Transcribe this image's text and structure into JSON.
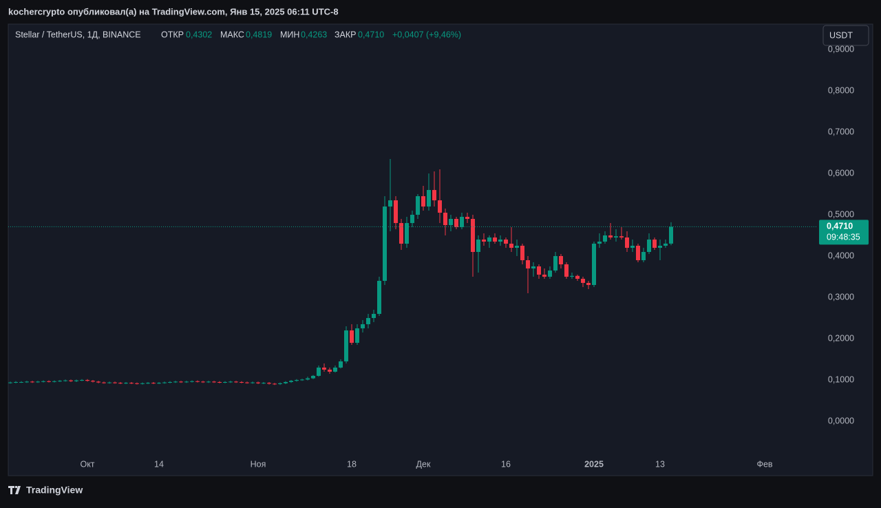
{
  "header": {
    "title": "kochercrypto опубликовал(а) на TradingView.com, Янв 15, 2025 06:11 UTC-8"
  },
  "legend": {
    "symbol": "Stellar / TetherUS, 1Д, BINANCE",
    "open_label": "ОТКР",
    "open": "0,4302",
    "high_label": "МАКС",
    "high": "0,4819",
    "low_label": "МИН",
    "low": "0,4263",
    "close_label": "ЗАКР",
    "close": "0,4710",
    "change": "+0,0407 (+9,46%)"
  },
  "currency_button": "USDT",
  "last_price": {
    "label": "0,4710",
    "countdown": "09:48:35"
  },
  "footer": {
    "logo": "TradingView"
  },
  "chart_data": {
    "type": "candlestick",
    "categories": [
      null,
      null,
      null,
      null,
      null,
      null,
      null,
      null,
      null,
      null,
      null,
      null,
      null,
      null,
      "Окт",
      null,
      null,
      null,
      null,
      null,
      null,
      null,
      null,
      null,
      null,
      null,
      null,
      "14",
      null,
      null,
      null,
      null,
      null,
      null,
      null,
      null,
      null,
      null,
      null,
      null,
      null,
      null,
      null,
      null,
      null,
      "Ноя",
      null,
      null,
      null,
      null,
      null,
      null,
      null,
      null,
      null,
      null,
      null,
      null,
      null,
      null,
      null,
      null,
      "18",
      null,
      null,
      null,
      null,
      null,
      null,
      null,
      null,
      null,
      null,
      null,
      null,
      "Дек",
      null,
      null,
      null,
      null,
      null,
      null,
      null,
      null,
      null,
      null,
      null,
      null,
      null,
      null,
      "16",
      null,
      null,
      null,
      null,
      null,
      null,
      null,
      null,
      null,
      null,
      null,
      null,
      null,
      null,
      null,
      "2025",
      null,
      null,
      null,
      null,
      null,
      null,
      null,
      null,
      null,
      null,
      null,
      "13",
      null,
      null,
      null,
      null,
      null,
      null,
      null,
      null,
      null,
      null,
      null,
      null,
      null,
      null,
      null,
      null,
      null,
      null,
      "Фев"
    ],
    "open": [
      0.093,
      0.094,
      0.095,
      0.095,
      0.096,
      0.095,
      0.096,
      0.097,
      0.096,
      0.097,
      0.098,
      0.099,
      0.097,
      0.099,
      0.1,
      0.098,
      0.096,
      0.094,
      0.093,
      0.094,
      0.093,
      0.092,
      0.093,
      0.092,
      0.091,
      0.092,
      0.093,
      0.092,
      0.093,
      0.094,
      0.095,
      0.096,
      0.095,
      0.096,
      0.097,
      0.096,
      0.095,
      0.096,
      0.095,
      0.094,
      0.095,
      0.096,
      0.095,
      0.094,
      0.093,
      0.094,
      0.092,
      0.093,
      0.091,
      0.09,
      0.092,
      0.095,
      0.098,
      0.1,
      0.101,
      0.104,
      0.11,
      0.13,
      0.125,
      0.12,
      0.13,
      0.145,
      0.22,
      0.19,
      0.225,
      0.235,
      0.25,
      0.26,
      0.34,
      0.52,
      0.535,
      0.48,
      0.43,
      0.48,
      0.5,
      0.545,
      0.52,
      0.56,
      0.535,
      0.505,
      0.475,
      0.49,
      0.47,
      0.495,
      0.49,
      0.41,
      0.44,
      0.435,
      0.445,
      0.435,
      0.44,
      0.43,
      0.42,
      0.425,
      0.39,
      0.37,
      0.375,
      0.355,
      0.35,
      0.365,
      0.4,
      0.38,
      0.35,
      0.352,
      0.345,
      0.335,
      0.33,
      0.43,
      0.435,
      0.45,
      0.445,
      0.448,
      0.445,
      0.42,
      0.425,
      0.39,
      0.41,
      0.44,
      0.42,
      0.425,
      0.4302,
      null,
      null,
      null,
      null,
      null,
      null,
      null,
      null,
      null,
      null,
      null,
      null,
      null,
      null,
      null,
      null,
      null
    ],
    "high": [
      0.096,
      0.097,
      0.097,
      0.098,
      0.098,
      0.098,
      0.099,
      0.099,
      0.099,
      0.1,
      0.101,
      0.101,
      0.101,
      0.102,
      0.102,
      0.1,
      0.098,
      0.096,
      0.096,
      0.096,
      0.095,
      0.095,
      0.095,
      0.094,
      0.094,
      0.095,
      0.095,
      0.095,
      0.096,
      0.097,
      0.098,
      0.098,
      0.098,
      0.099,
      0.099,
      0.098,
      0.098,
      0.098,
      0.097,
      0.097,
      0.098,
      0.098,
      0.097,
      0.096,
      0.096,
      0.096,
      0.095,
      0.095,
      0.093,
      0.094,
      0.097,
      0.1,
      0.102,
      0.103,
      0.108,
      0.112,
      0.135,
      0.14,
      0.13,
      0.135,
      0.15,
      0.23,
      0.235,
      0.235,
      0.245,
      0.26,
      0.27,
      0.35,
      0.545,
      0.635,
      0.545,
      0.49,
      0.495,
      0.51,
      0.55,
      0.57,
      0.6,
      0.605,
      0.61,
      0.515,
      0.5,
      0.495,
      0.505,
      0.505,
      0.5,
      0.45,
      0.455,
      0.45,
      0.455,
      0.45,
      0.445,
      0.47,
      0.44,
      0.43,
      0.4,
      0.385,
      0.38,
      0.37,
      0.375,
      0.41,
      0.405,
      0.385,
      0.36,
      0.355,
      0.35,
      0.34,
      0.435,
      0.455,
      0.46,
      0.48,
      0.465,
      0.47,
      0.46,
      0.44,
      0.43,
      0.42,
      0.455,
      0.445,
      0.44,
      0.44,
      0.4819,
      null,
      null,
      null,
      null,
      null,
      null,
      null,
      null,
      null,
      null,
      null,
      null,
      null,
      null,
      null,
      null,
      null
    ],
    "low": [
      0.091,
      0.092,
      0.093,
      0.093,
      0.093,
      0.093,
      0.094,
      0.094,
      0.094,
      0.095,
      0.096,
      0.095,
      0.095,
      0.097,
      0.096,
      0.094,
      0.092,
      0.091,
      0.091,
      0.091,
      0.09,
      0.09,
      0.09,
      0.089,
      0.089,
      0.09,
      0.09,
      0.09,
      0.091,
      0.092,
      0.093,
      0.093,
      0.093,
      0.094,
      0.094,
      0.093,
      0.093,
      0.093,
      0.092,
      0.092,
      0.093,
      0.093,
      0.092,
      0.091,
      0.091,
      0.09,
      0.09,
      0.089,
      0.088,
      0.088,
      0.09,
      0.093,
      0.096,
      0.098,
      0.099,
      0.102,
      0.108,
      0.12,
      0.115,
      0.118,
      0.128,
      0.14,
      0.185,
      0.185,
      0.215,
      0.225,
      0.24,
      0.255,
      0.33,
      0.46,
      0.465,
      0.415,
      0.42,
      0.47,
      0.49,
      0.51,
      0.51,
      0.52,
      0.48,
      0.45,
      0.46,
      0.465,
      0.465,
      0.48,
      0.35,
      0.36,
      0.425,
      0.42,
      0.43,
      0.425,
      0.42,
      0.41,
      0.4,
      0.38,
      0.31,
      0.35,
      0.345,
      0.345,
      0.345,
      0.36,
      0.37,
      0.345,
      0.345,
      0.34,
      0.325,
      0.32,
      0.325,
      0.42,
      0.43,
      0.44,
      0.435,
      0.44,
      0.41,
      0.41,
      0.385,
      0.385,
      0.405,
      0.415,
      0.39,
      0.42,
      0.4263,
      null,
      null,
      null,
      null,
      null,
      null,
      null,
      null,
      null,
      null,
      null,
      null,
      null,
      null,
      null,
      null,
      null
    ],
    "close": [
      0.094,
      0.095,
      0.095,
      0.096,
      0.095,
      0.096,
      0.097,
      0.096,
      0.097,
      0.098,
      0.099,
      0.097,
      0.099,
      0.1,
      0.098,
      0.096,
      0.094,
      0.093,
      0.094,
      0.093,
      0.092,
      0.093,
      0.092,
      0.091,
      0.092,
      0.093,
      0.092,
      0.093,
      0.094,
      0.095,
      0.096,
      0.095,
      0.096,
      0.097,
      0.096,
      0.095,
      0.096,
      0.095,
      0.094,
      0.095,
      0.096,
      0.095,
      0.094,
      0.093,
      0.094,
      0.092,
      0.093,
      0.091,
      0.09,
      0.092,
      0.095,
      0.098,
      0.1,
      0.101,
      0.104,
      0.11,
      0.13,
      0.125,
      0.12,
      0.13,
      0.145,
      0.22,
      0.19,
      0.225,
      0.235,
      0.25,
      0.26,
      0.34,
      0.52,
      0.535,
      0.48,
      0.43,
      0.48,
      0.5,
      0.545,
      0.52,
      0.56,
      0.535,
      0.505,
      0.475,
      0.49,
      0.47,
      0.495,
      0.49,
      0.41,
      0.44,
      0.435,
      0.445,
      0.435,
      0.44,
      0.43,
      0.42,
      0.425,
      0.39,
      0.37,
      0.375,
      0.355,
      0.35,
      0.365,
      0.4,
      0.38,
      0.35,
      0.352,
      0.345,
      0.335,
      0.33,
      0.43,
      0.435,
      0.45,
      0.445,
      0.448,
      0.445,
      0.42,
      0.425,
      0.39,
      0.41,
      0.44,
      0.42,
      0.425,
      0.4302,
      0.471,
      null,
      null,
      null,
      null,
      null,
      null,
      null,
      null,
      null,
      null,
      null,
      null,
      null,
      null,
      null,
      null,
      null
    ],
    "up_color": "#089981",
    "down_color": "#f23645",
    "ylim": [
      -0.13,
      0.9617
    ],
    "yticks": [
      {
        "value": 0.9,
        "label": "0,9000"
      },
      {
        "value": 0.8,
        "label": "0,8000"
      },
      {
        "value": 0.7,
        "label": "0,7000"
      },
      {
        "value": 0.6,
        "label": "0,6000"
      },
      {
        "value": 0.5,
        "label": "0,5000"
      },
      {
        "value": 0.4,
        "label": "0,4000"
      },
      {
        "value": 0.3,
        "label": "0,3000"
      },
      {
        "value": 0.2,
        "label": "0,2000"
      },
      {
        "value": 0.1,
        "label": "0,1000"
      },
      {
        "value": 0,
        "label": "0,0000"
      }
    ],
    "grid": false
  }
}
